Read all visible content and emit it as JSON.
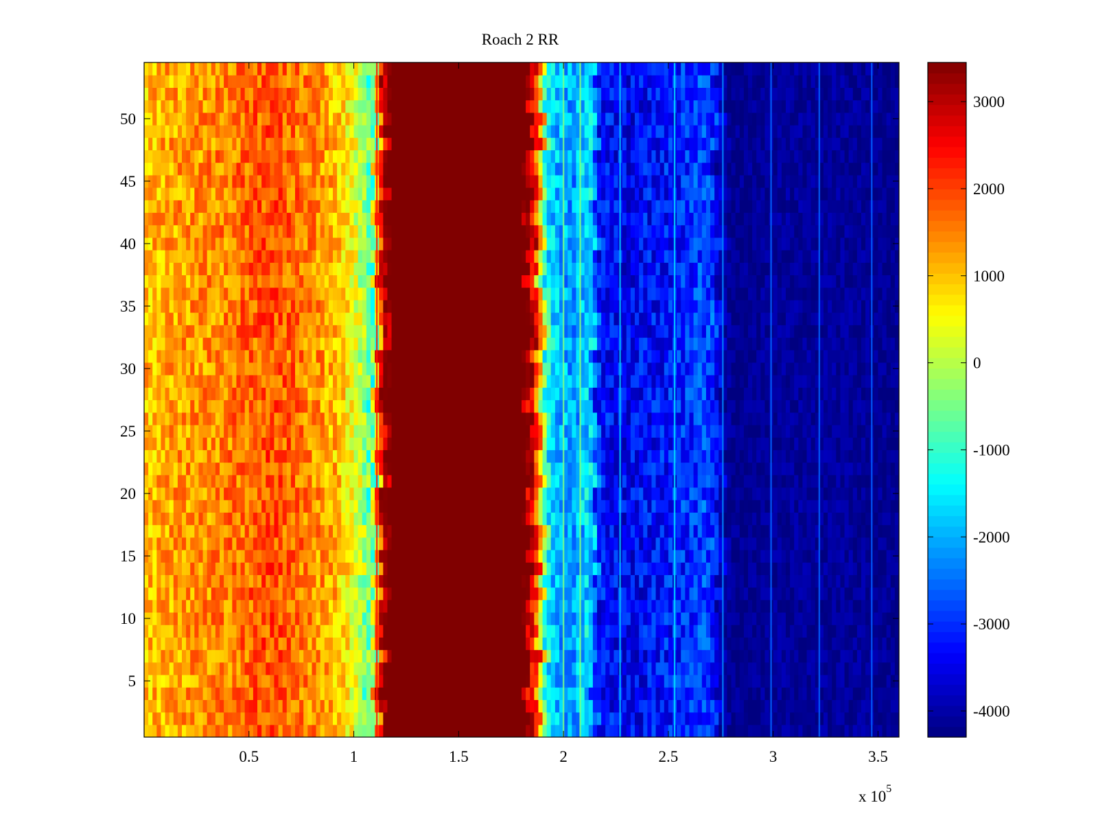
{
  "chart_data": {
    "type": "heatmap",
    "title": "Roach 2 RR",
    "xlabel": "",
    "ylabel": "",
    "x_multiplier_label": "x 10",
    "x_multiplier_exponent": "5",
    "xlim": [
      0,
      360000
    ],
    "ylim": [
      0.5,
      54.5
    ],
    "x_ticks": [
      50000,
      100000,
      150000,
      200000,
      250000,
      300000,
      350000
    ],
    "x_tick_labels": [
      "0.5",
      "1",
      "1.5",
      "2",
      "2.5",
      "3",
      "3.5"
    ],
    "y_ticks": [
      5,
      10,
      15,
      20,
      25,
      30,
      35,
      40,
      45,
      50
    ],
    "y_tick_labels": [
      "5",
      "10",
      "15",
      "20",
      "25",
      "30",
      "35",
      "40",
      "45",
      "50"
    ],
    "rows": 54,
    "colormap": "jet",
    "colorbar": {
      "clim": [
        -4300,
        3450
      ],
      "ticks": [
        -4000,
        -3000,
        -2000,
        -1000,
        0,
        1000,
        2000,
        3000
      ],
      "tick_labels": [
        "-4000",
        "-3000",
        "-2000",
        "-1000",
        "0",
        "1000",
        "2000",
        "3000"
      ]
    },
    "column_profile": {
      "x": [
        0,
        10000,
        40000,
        60000,
        70000,
        85000,
        95000,
        103000,
        109000,
        113000,
        117000,
        150000,
        182000,
        187000,
        190000,
        192000,
        195000,
        205000,
        213000,
        217000,
        230000,
        250000,
        270000,
        277000,
        281000,
        300000,
        340000,
        360000
      ],
      "value": [
        1000,
        1200,
        1500,
        1900,
        1700,
        1300,
        900,
        100,
        -1000,
        2600,
        3450,
        3450,
        3450,
        2400,
        300,
        -1200,
        -1800,
        -2200,
        -1500,
        -3200,
        -3400,
        -3200,
        -2800,
        -4000,
        -4200,
        -4100,
        -4100,
        -4200
      ]
    },
    "bright_streak_x": [
      111000,
      200000,
      208000,
      227000,
      253000,
      276000,
      299000,
      322000,
      347000
    ]
  }
}
